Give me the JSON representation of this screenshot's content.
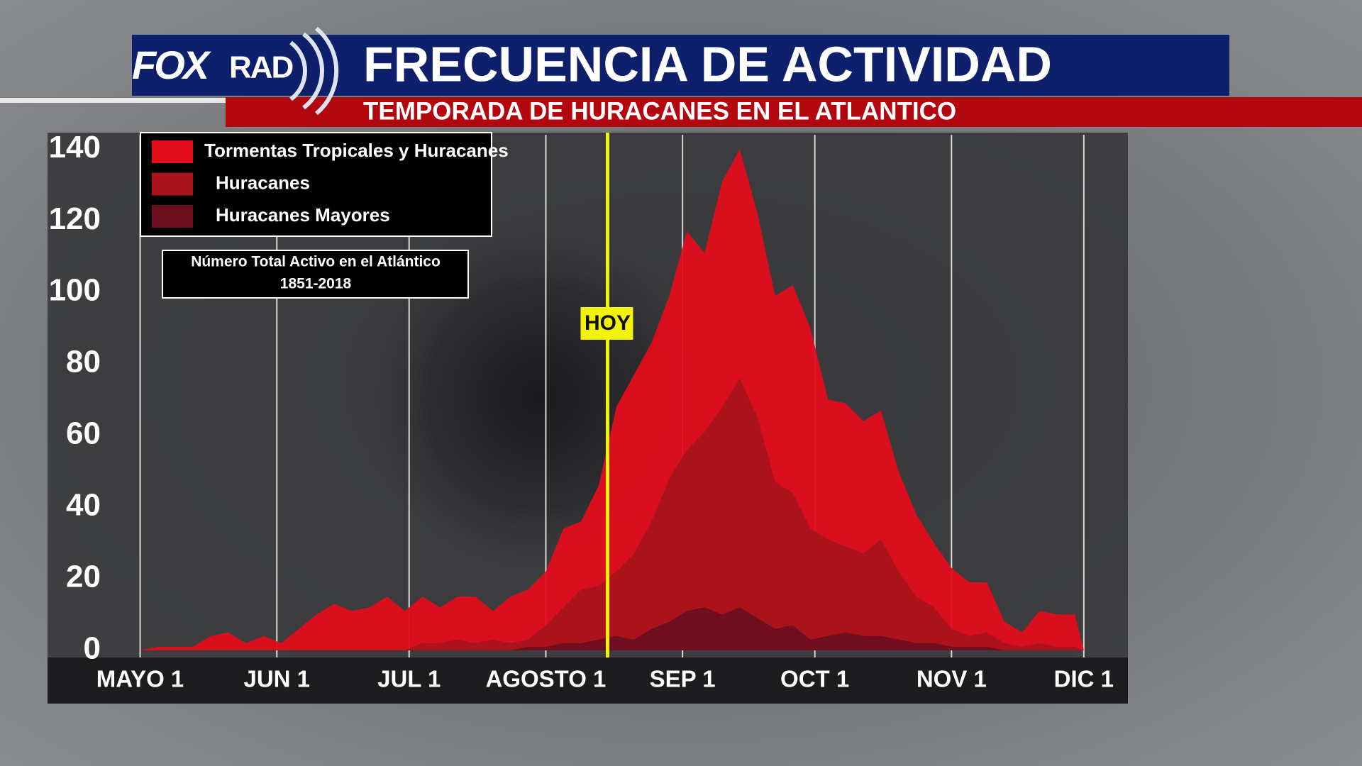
{
  "logo": {
    "fox": "FOX",
    "rad": "RAD"
  },
  "chart_data": {
    "type": "area",
    "title": "FRECUENCIA DE ACTIVIDAD",
    "subtitle": "TEMPORADA DE HURACANES EN EL ATLANTICO",
    "note": [
      "Número Total Activo en el Atlántico",
      "1851-2018"
    ],
    "x": [
      0,
      4,
      8,
      12,
      16,
      20,
      24,
      28,
      32,
      36,
      40,
      44,
      48,
      52,
      56,
      60,
      64,
      68,
      72,
      76,
      80,
      84,
      88,
      92,
      96,
      100,
      104,
      108,
      112,
      116,
      120,
      124,
      128,
      132,
      136,
      140,
      144,
      148,
      152,
      156,
      160,
      164,
      168,
      172,
      176,
      180,
      184,
      188,
      192,
      196,
      200,
      204,
      208,
      212,
      214
    ],
    "xlim": [
      -21,
      224
    ],
    "xticks": [
      {
        "value": 0,
        "label": "MAYO 1"
      },
      {
        "value": 31,
        "label": "JUN 1"
      },
      {
        "value": 61,
        "label": "JUL 1"
      },
      {
        "value": 92,
        "label": "AGOSTO 1"
      },
      {
        "value": 123,
        "label": "SEP 1"
      },
      {
        "value": 153,
        "label": "OCT 1"
      },
      {
        "value": 184,
        "label": "NOV 1"
      },
      {
        "value": 214,
        "label": "DIC 1"
      }
    ],
    "ylim": [
      -2,
      144
    ],
    "yticks": [
      0,
      20,
      40,
      60,
      80,
      100,
      120,
      140
    ],
    "grid": true,
    "legend": "upper left",
    "series": [
      {
        "name": "Tormentas Tropicales y Huracanes",
        "color": "#e30d1c",
        "values": [
          0,
          1,
          1,
          1,
          4,
          5,
          2,
          4,
          2,
          6,
          10,
          13,
          11,
          12,
          15,
          11,
          15,
          12,
          15,
          15,
          11,
          15,
          17,
          22,
          34,
          36,
          46,
          68,
          77,
          86,
          99,
          117,
          111,
          131,
          140,
          122,
          99,
          102,
          90,
          70,
          69,
          64,
          67,
          50,
          38,
          30,
          23,
          19,
          19,
          8,
          5,
          11,
          10,
          10,
          0
        ]
      },
      {
        "name": "Huracanes",
        "color": "#a8131c",
        "values": [
          0,
          0,
          0,
          0,
          0,
          0,
          0,
          0,
          0,
          0,
          0,
          0,
          0,
          0,
          0,
          0,
          2,
          2,
          3,
          2,
          3,
          2,
          3,
          7,
          12,
          17,
          18,
          22,
          27,
          36,
          48,
          56,
          61,
          68,
          76,
          65,
          47,
          44,
          34,
          31,
          29,
          27,
          31,
          22,
          15,
          12,
          6,
          4,
          5,
          2,
          1,
          2,
          1,
          1,
          0
        ]
      },
      {
        "name": "Huracanes Mayores",
        "color": "#6b0f20",
        "values": [
          0,
          0,
          0,
          0,
          0,
          0,
          0,
          0,
          0,
          0,
          0,
          0,
          0,
          0,
          0,
          0,
          0,
          0,
          0,
          0,
          0,
          0,
          1,
          1,
          2,
          2,
          3,
          4,
          3,
          6,
          8,
          11,
          12,
          10,
          12,
          9,
          6,
          7,
          3,
          4,
          5,
          4,
          4,
          3,
          2,
          2,
          1,
          1,
          1,
          0,
          0,
          0,
          0,
          0,
          0
        ]
      }
    ],
    "annotations": [
      {
        "label": "HOY",
        "x": 106,
        "color": "#f2f20a"
      }
    ]
  }
}
